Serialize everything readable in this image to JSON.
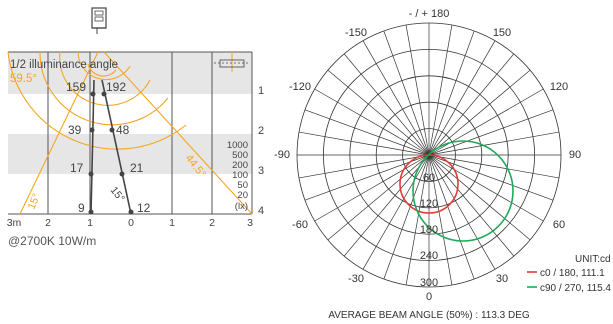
{
  "illuminance": {
    "title": "1/2 illuminance angle",
    "half_angle_label": "59.5°",
    "side_angle_label": "44.5°",
    "beam_angle_label_left": "15°",
    "beam_angle_label_right": "15°",
    "caption": "@2700K 10W/m",
    "lux_values": [
      "159",
      "192",
      "39",
      "48",
      "17",
      "21",
      "9",
      "12"
    ],
    "distance_labels": [
      "1",
      "2",
      "3",
      "4"
    ],
    "x_ticks": [
      "3m",
      "2",
      "1",
      "0",
      "1",
      "2",
      "3"
    ],
    "lux_scale": [
      "1000",
      "500",
      "200",
      "100",
      "50",
      "20",
      "(lx)"
    ],
    "colors": {
      "orange": "#f5a623",
      "band": "#e6e6e6",
      "line": "#555555"
    }
  },
  "polar": {
    "top_label": "- / + 180",
    "angle_labels": [
      "-150",
      "150",
      "-120",
      "120",
      "-90",
      "90",
      "-60",
      "60",
      "-30",
      "30",
      "0"
    ],
    "radial_labels": [
      "60",
      "120",
      "180",
      "240",
      "300"
    ],
    "unit_label": "UNIT:cd",
    "legend": [
      {
        "label": "c0 / 180, 111.1",
        "color": "#e53935"
      },
      {
        "label": "c90 / 270, 115.4",
        "color": "#1faa59"
      }
    ],
    "footer": "AVERAGE BEAM ANGLE (50%) : 113.3 DEG"
  }
}
